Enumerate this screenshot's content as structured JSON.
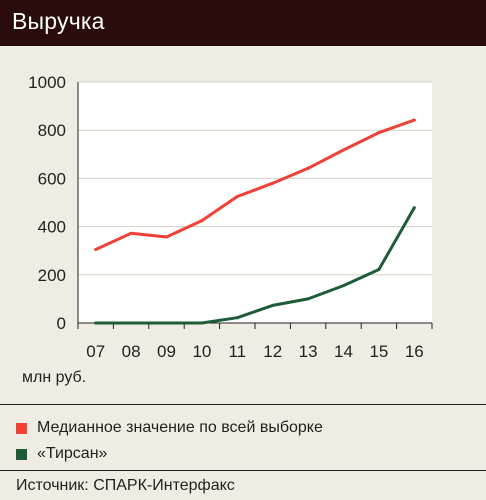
{
  "header": {
    "title": "Выручка"
  },
  "chart_data": {
    "type": "line",
    "x": [
      "07",
      "08",
      "09",
      "10",
      "11",
      "12",
      "13",
      "14",
      "15",
      "16"
    ],
    "ylim": [
      0,
      1000
    ],
    "yticks": [
      0,
      200,
      400,
      600,
      800,
      1000
    ],
    "ylabel": "млн руб.",
    "grid": true,
    "legend_position": "bottom",
    "series": [
      {
        "name": "Медианное значение по всей выборке",
        "color": "#ef4136",
        "values": [
          305,
          372,
          357,
          425,
          525,
          580,
          642,
          718,
          790,
          842
        ]
      },
      {
        "name": "«Тирсан»",
        "color": "#1d5c36",
        "values": [
          0,
          0,
          0,
          0,
          22,
          73,
          100,
          155,
          222,
          478
        ]
      }
    ]
  },
  "source": "Источник: СПАРК-Интерфакс"
}
